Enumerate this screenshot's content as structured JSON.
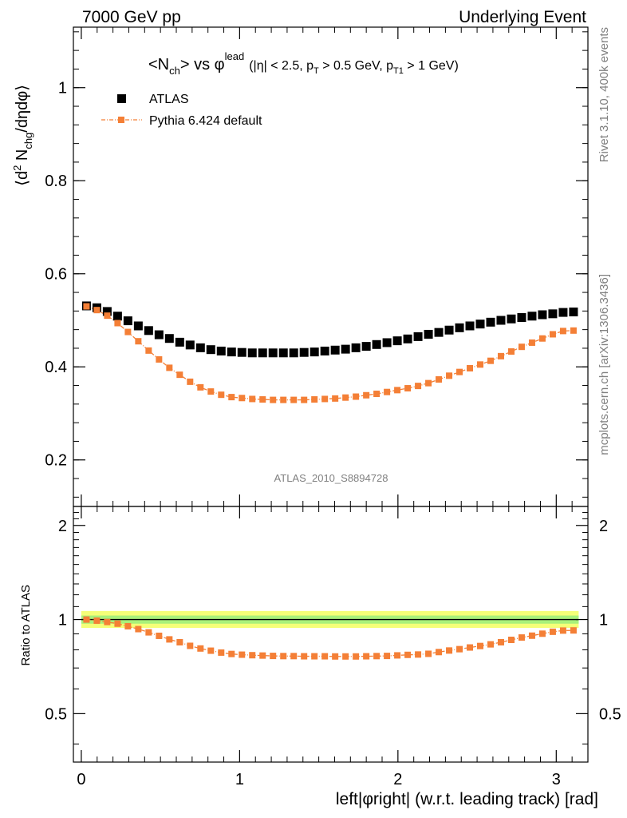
{
  "header": {
    "left_label": "7000 GeV pp",
    "right_label": "Underlying Event"
  },
  "side_labels": {
    "rivet": "Rivet 3.1.10,  400k events",
    "mcplots": "mcplots.cern.ch [arXiv:1306.3436]"
  },
  "watermark": "ATLAS_2010_S8894728",
  "plot_title": {
    "n": "<N",
    "n_sub": "ch",
    "vs": "> vs φ",
    "lead_sup": "lead",
    "cuts_a": "(|η| < 2.5, p",
    "cuts_T": "T",
    "cuts_b": " > 0.5 GeV, p",
    "cuts_T1": "T1",
    "cuts_c": " > 1 GeV)"
  },
  "colors": {
    "data": "#000000",
    "mc": "#f47f36",
    "band_inner": "#a8f07a",
    "band_outer": "#f5ff78"
  },
  "chart_data": [
    {
      "type": "scatter",
      "panel": "main",
      "ylabel": "⟨d² N_chg/dηdφ⟩",
      "ylim": [
        0.1,
        1.13
      ],
      "xlim": [
        -0.05,
        3.2
      ],
      "yticks": [
        "0.2",
        "0.4",
        "0.6",
        "0.8",
        "1"
      ],
      "ytick_values": [
        0.2,
        0.4,
        0.6,
        0.8,
        1.0
      ],
      "legend_placement": "top-left",
      "x": [
        0.0327,
        0.0982,
        0.1636,
        0.2291,
        0.2945,
        0.36,
        0.4254,
        0.4909,
        0.5563,
        0.6218,
        0.6872,
        0.7527,
        0.8181,
        0.8836,
        0.949,
        1.0145,
        1.0799,
        1.1454,
        1.2108,
        1.2763,
        1.3417,
        1.4072,
        1.4726,
        1.5381,
        1.6035,
        1.669,
        1.7344,
        1.7999,
        1.8653,
        1.9308,
        1.9962,
        2.0617,
        2.1271,
        2.1926,
        2.258,
        2.3235,
        2.3889,
        2.4544,
        2.5198,
        2.5853,
        2.6507,
        2.7162,
        2.7816,
        2.8471,
        2.9125,
        2.978,
        3.0434,
        3.1089
      ],
      "series": [
        {
          "name": "ATLAS",
          "marker": "square",
          "values": [
            0.531,
            0.527,
            0.519,
            0.509,
            0.499,
            0.488,
            0.478,
            0.469,
            0.461,
            0.453,
            0.447,
            0.441,
            0.437,
            0.434,
            0.432,
            0.431,
            0.43,
            0.43,
            0.43,
            0.43,
            0.43,
            0.431,
            0.432,
            0.434,
            0.436,
            0.438,
            0.441,
            0.444,
            0.448,
            0.452,
            0.456,
            0.46,
            0.465,
            0.47,
            0.474,
            0.479,
            0.484,
            0.488,
            0.492,
            0.496,
            0.5,
            0.503,
            0.506,
            0.509,
            0.512,
            0.514,
            0.517,
            0.518
          ]
        },
        {
          "name": "Pythia 6.424 default",
          "marker": "square-line",
          "values": [
            0.53,
            0.522,
            0.51,
            0.494,
            0.475,
            0.455,
            0.435,
            0.416,
            0.398,
            0.383,
            0.368,
            0.356,
            0.347,
            0.34,
            0.335,
            0.333,
            0.331,
            0.33,
            0.329,
            0.329,
            0.329,
            0.329,
            0.33,
            0.331,
            0.332,
            0.334,
            0.336,
            0.339,
            0.342,
            0.346,
            0.35,
            0.354,
            0.359,
            0.365,
            0.373,
            0.381,
            0.389,
            0.397,
            0.405,
            0.413,
            0.423,
            0.433,
            0.443,
            0.452,
            0.461,
            0.47,
            0.477,
            0.478
          ]
        }
      ]
    },
    {
      "type": "scatter",
      "panel": "ratio",
      "xlabel": "left|φright| (w.r.t. leading track) [rad]",
      "ylabel": "Ratio to ATLAS",
      "ylim": [
        0.35,
        2.3
      ],
      "xlim": [
        -0.05,
        3.2
      ],
      "yscale": "log",
      "xticks": [
        "0",
        "1",
        "2",
        "3"
      ],
      "xtick_values": [
        0,
        1,
        2,
        3
      ],
      "yticks": [
        "0.5",
        "1",
        "2"
      ],
      "ytick_values": [
        0.5,
        1,
        2
      ],
      "reference_line": 1,
      "band_inner": [
        0.97,
        1.03
      ],
      "band_outer": [
        0.94,
        1.065
      ],
      "series": [
        {
          "name": "Pythia 6.424 default",
          "values": [
            1.0,
            0.992,
            0.982,
            0.97,
            0.952,
            0.932,
            0.91,
            0.887,
            0.864,
            0.846,
            0.824,
            0.808,
            0.795,
            0.784,
            0.776,
            0.772,
            0.769,
            0.767,
            0.765,
            0.764,
            0.764,
            0.763,
            0.763,
            0.763,
            0.762,
            0.762,
            0.762,
            0.763,
            0.764,
            0.765,
            0.768,
            0.771,
            0.773,
            0.777,
            0.787,
            0.796,
            0.804,
            0.814,
            0.823,
            0.833,
            0.846,
            0.861,
            0.876,
            0.888,
            0.901,
            0.914,
            0.922,
            0.923
          ]
        }
      ]
    }
  ]
}
